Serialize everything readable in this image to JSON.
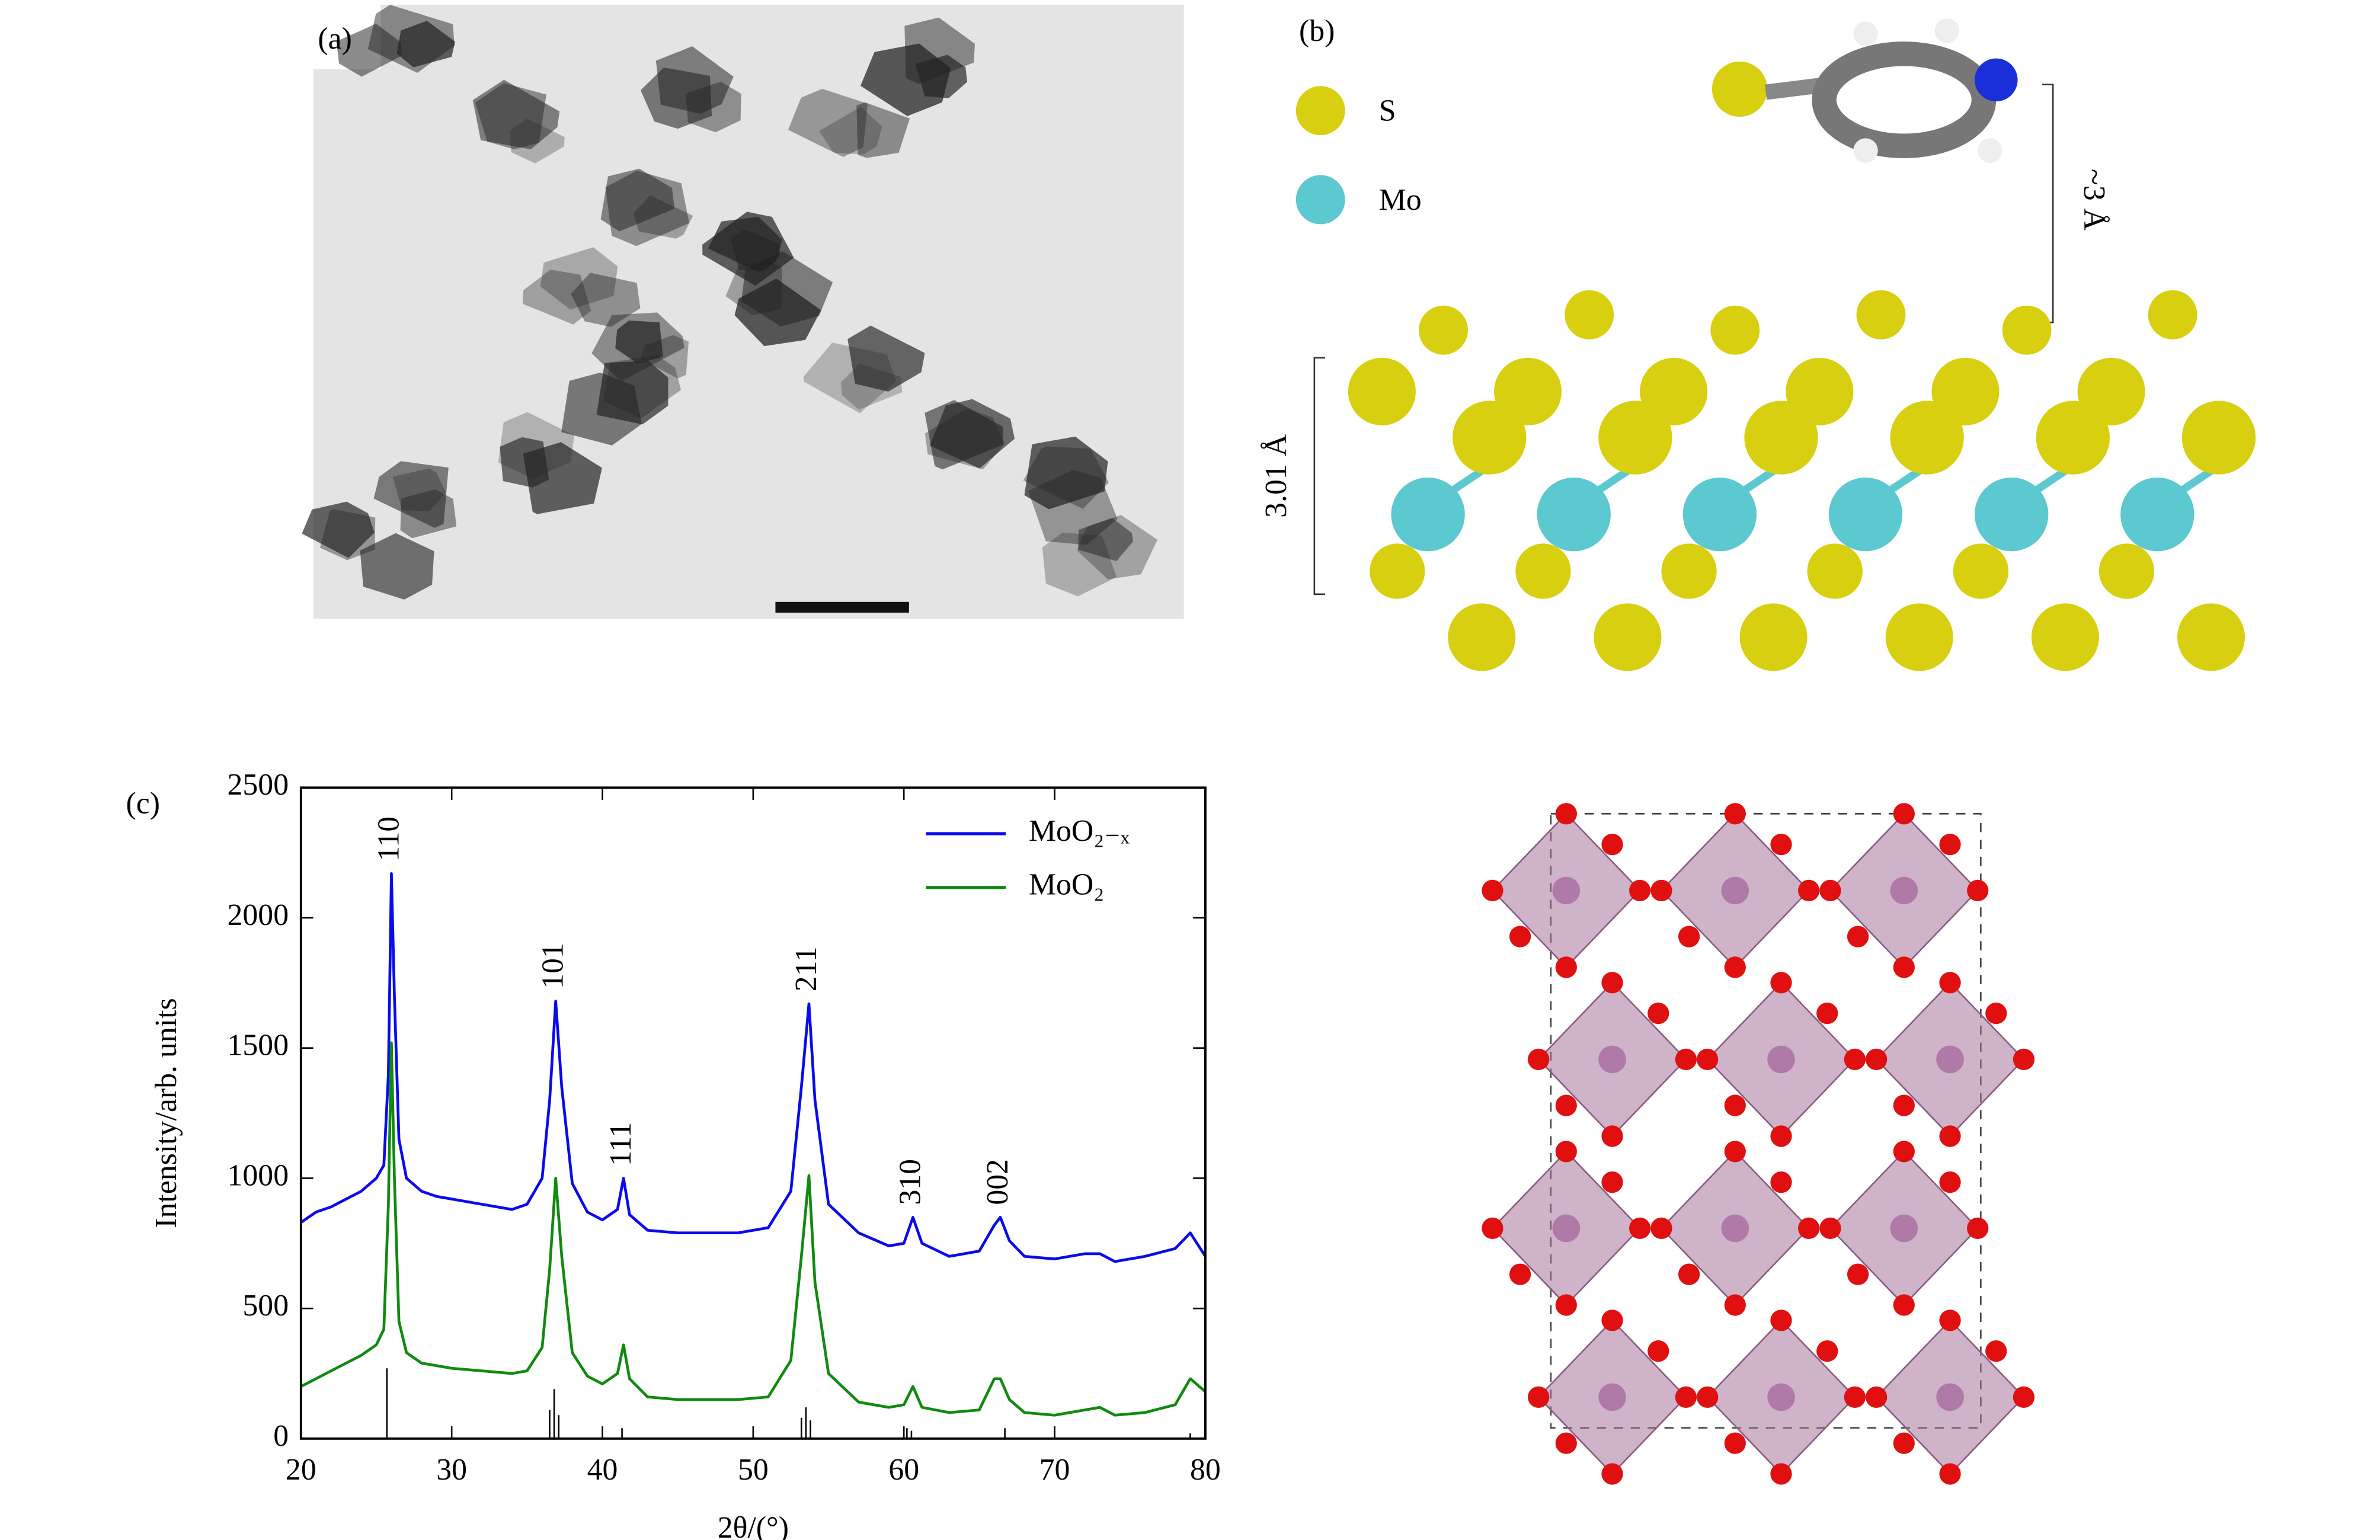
{
  "panels": {
    "a": "(a)",
    "b": "(b)",
    "c": "(c)"
  },
  "structure": {
    "legend": [
      "S",
      "Mo"
    ],
    "interlayer": "~3 Å",
    "thickness": "3.01 Å"
  },
  "chart_data": {
    "type": "line",
    "xlabel": "2θ/(°)",
    "ylabel": "Intensity/arb. units",
    "x": [
      20,
      21,
      22,
      23,
      24,
      25,
      25.5,
      25.8,
      26,
      26.2,
      26.5,
      27,
      28,
      29,
      30,
      32,
      34,
      35,
      36,
      36.5,
      36.9,
      37.3,
      38,
      39,
      40,
      41,
      41.4,
      41.8,
      43,
      45,
      47,
      49,
      51,
      52.5,
      53.2,
      53.7,
      54.1,
      55,
      57,
      59,
      60,
      60.6,
      61.2,
      63,
      65,
      66,
      66.4,
      67,
      68,
      70,
      72,
      73,
      74,
      76,
      78,
      79,
      80
    ],
    "series": [
      {
        "name": "MoO₂₋ₓ",
        "color": "#0a0aee",
        "values": [
          830,
          870,
          890,
          920,
          950,
          1000,
          1050,
          1400,
          2170,
          1700,
          1150,
          1000,
          950,
          930,
          920,
          900,
          880,
          900,
          1000,
          1300,
          1680,
          1350,
          980,
          870,
          840,
          880,
          1000,
          860,
          800,
          790,
          790,
          790,
          810,
          950,
          1350,
          1670,
          1300,
          900,
          790,
          740,
          750,
          850,
          750,
          700,
          720,
          820,
          850,
          760,
          700,
          690,
          710,
          710,
          680,
          700,
          730,
          790,
          700
        ]
      },
      {
        "name": "MoO₂",
        "color": "#108a10",
        "values": [
          200,
          230,
          260,
          290,
          320,
          360,
          420,
          900,
          1520,
          1000,
          450,
          330,
          290,
          280,
          270,
          260,
          250,
          260,
          350,
          650,
          1000,
          700,
          330,
          240,
          210,
          250,
          360,
          230,
          160,
          150,
          150,
          150,
          160,
          300,
          700,
          1010,
          600,
          250,
          140,
          120,
          130,
          200,
          120,
          100,
          110,
          230,
          230,
          150,
          100,
          90,
          110,
          120,
          90,
          100,
          130,
          230,
          180
        ]
      }
    ],
    "sticks": {
      "color": "#000000",
      "x": [
        25.7,
        36.5,
        36.8,
        37.1,
        41.3,
        53.2,
        53.5,
        53.8,
        60.2,
        60.5,
        66.7,
        79
      ],
      "values": [
        270,
        110,
        190,
        90,
        40,
        80,
        120,
        70,
        40,
        30,
        40,
        20
      ]
    },
    "annotations": [
      {
        "text": "110",
        "x": 26,
        "y": 2170
      },
      {
        "text": "101",
        "x": 36.9,
        "y": 1680
      },
      {
        "text": "111",
        "x": 41.4,
        "y": 1000
      },
      {
        "text": "211",
        "x": 53.7,
        "y": 1670
      },
      {
        "text": "310",
        "x": 60.6,
        "y": 850
      },
      {
        "text": "002",
        "x": 66.4,
        "y": 850
      }
    ],
    "annotation_color": "#0a0aee",
    "xlim": [
      20,
      80
    ],
    "xticks": [
      20,
      30,
      40,
      50,
      60,
      70,
      80
    ],
    "ylim": [
      0,
      2500
    ],
    "yticks": [
      0,
      500,
      1000,
      1500,
      2000,
      2500
    ],
    "legend": "upper right"
  }
}
